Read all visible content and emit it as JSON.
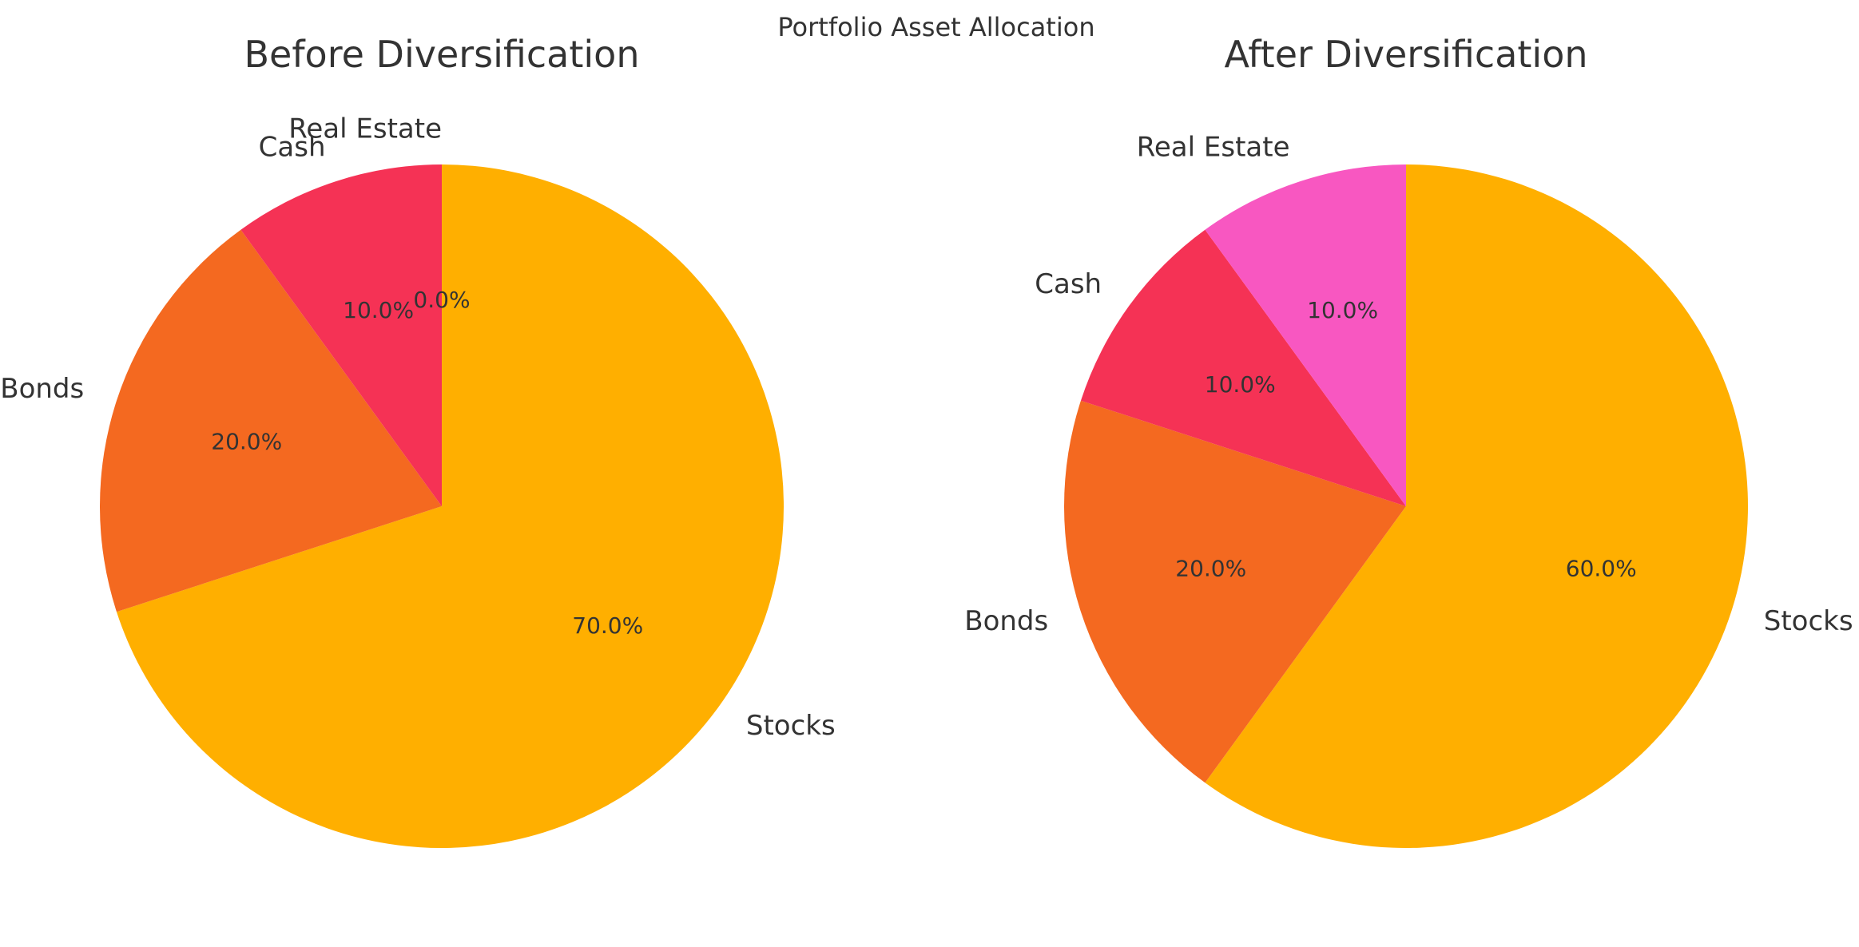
{
  "figure_title": "Portfolio Asset Allocation",
  "chart_data": [
    {
      "type": "pie",
      "title": "Before Diversification",
      "start_angle_deg": 90,
      "direction": "clockwise",
      "slices": [
        {
          "label": "Stocks",
          "value": 70,
          "pct_label": "70.0%",
          "color": "#FFAF00"
        },
        {
          "label": "Bonds",
          "value": 20,
          "pct_label": "20.0%",
          "color": "#F46920"
        },
        {
          "label": "Cash",
          "value": 10,
          "pct_label": "10.0%",
          "color": "#F53255"
        },
        {
          "label": "Real Estate",
          "value": 0,
          "pct_label": "0.0%",
          "color": "#F857C1"
        }
      ]
    },
    {
      "type": "pie",
      "title": "After Diversification",
      "start_angle_deg": 90,
      "direction": "clockwise",
      "slices": [
        {
          "label": "Stocks",
          "value": 60,
          "pct_label": "60.0%",
          "color": "#FFAF00"
        },
        {
          "label": "Bonds",
          "value": 20,
          "pct_label": "20.0%",
          "color": "#F46920"
        },
        {
          "label": "Cash",
          "value": 10,
          "pct_label": "10.0%",
          "color": "#F53255"
        },
        {
          "label": "Real Estate",
          "value": 10,
          "pct_label": "10.0%",
          "color": "#F857C1"
        }
      ]
    }
  ]
}
